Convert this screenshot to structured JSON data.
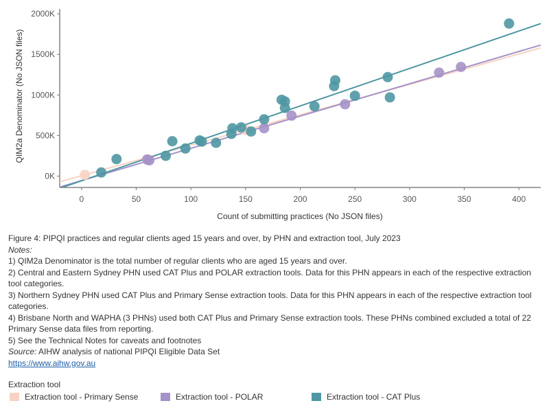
{
  "chart_data": {
    "type": "scatter",
    "xlabel": "Count of submitting practices (No JSON files)",
    "ylabel": "QIM2a Denominator (No JSON files)",
    "xlim": [
      -20,
      420
    ],
    "ylim": [
      -140000,
      2060000
    ],
    "xticks": [
      0,
      50,
      100,
      150,
      200,
      250,
      300,
      350,
      400
    ],
    "yticks": [
      0,
      500000,
      1000000,
      1500000,
      2000000
    ],
    "ytick_labels": [
      "0K",
      "500K",
      "1000K",
      "1500K",
      "2000K"
    ],
    "grid": false,
    "legend_title": "Extraction tool",
    "legend_position": "bottom",
    "series": [
      {
        "name": "Extraction tool - Primary Sense",
        "color": "#f7d3c3",
        "points": [
          [
            3,
            15000
          ],
          [
            60,
            200000
          ],
          [
            150,
            570000
          ]
        ],
        "trend": {
          "from": [
            -20,
            -70000
          ],
          "to": [
            420,
            1580000
          ]
        }
      },
      {
        "name": "Extraction tool - POLAR",
        "color": "#a592c8",
        "points": [
          [
            60,
            205000
          ],
          [
            62,
            195000
          ],
          [
            167,
            590000
          ],
          [
            192,
            745000
          ],
          [
            241,
            885000
          ],
          [
            327,
            1275000
          ],
          [
            347,
            1345000
          ]
        ],
        "trend": {
          "from": [
            -20,
            -135000
          ],
          "to": [
            420,
            1615000
          ]
        }
      },
      {
        "name": "Extraction tool - CAT Plus",
        "color": "#4f97a3",
        "points": [
          [
            18,
            45000
          ],
          [
            32,
            210000
          ],
          [
            77,
            250000
          ],
          [
            83,
            430000
          ],
          [
            95,
            340000
          ],
          [
            108,
            440000
          ],
          [
            110,
            425000
          ],
          [
            123,
            410000
          ],
          [
            137,
            520000
          ],
          [
            138,
            590000
          ],
          [
            146,
            600000
          ],
          [
            155,
            550000
          ],
          [
            167,
            700000
          ],
          [
            183,
            940000
          ],
          [
            186,
            920000
          ],
          [
            186,
            840000
          ],
          [
            213,
            860000
          ],
          [
            231,
            1110000
          ],
          [
            232,
            1180000
          ],
          [
            250,
            990000
          ],
          [
            280,
            1220000
          ],
          [
            282,
            970000
          ],
          [
            391,
            1880000
          ]
        ],
        "trend": {
          "from": [
            -20,
            -150000
          ],
          "to": [
            420,
            1880000
          ]
        }
      }
    ]
  },
  "caption": {
    "figure": "Figure 4: PIPQI practices and regular clients aged 15 years and over, by PHN and extraction tool, July 2023",
    "notes_label": "Notes:",
    "notes": [
      "1) QIM2a Denominator is the total number of regular clients who are aged 15 years and over.",
      "2) Central and Eastern Sydney PHN used CAT Plus and POLAR extraction tools. Data for this PHN appears in each of the respective extraction tool categories.",
      "3) Northern Sydney PHN used CAT Plus and Primary Sense extraction tools. Data for this PHN appears in each of the respective extraction tool categories.",
      "4) Brisbane North and WAPHA (3 PHNs) used both CAT Plus and Primary Sense extraction tools. These PHNs combined excluded a total of 22 Primary Sense data files from reporting.",
      "5) See the Technical Notes for caveats and footnotes"
    ],
    "source_label": "Source:",
    "source_text": "AIHW analysis of national PIPQI Eligible Data Set",
    "link": "https://www.aihw.gov.au"
  }
}
